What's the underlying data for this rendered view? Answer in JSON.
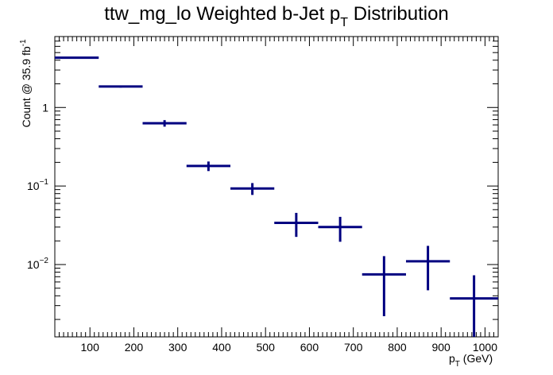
{
  "chart_data": {
    "type": "scatter",
    "style": "histogram-errorbars",
    "title_main": "ttw_mg_lo Weighted b-Jet p",
    "title_sub": "T",
    "title_tail": " Distribution",
    "ylabel_main": "Count @ 35.9 fb",
    "ylabel_sup": "-1",
    "xlabel_main": "p",
    "xlabel_sub": "T",
    "xlabel_tail": " (GeV)",
    "xlim": [
      20,
      1030
    ],
    "ylim": [
      0.0012,
      8.0
    ],
    "yscale": "log",
    "grid": false,
    "legend": "none",
    "color": "#000080",
    "x_ticks": [
      100,
      200,
      300,
      400,
      500,
      600,
      700,
      800,
      900,
      1000
    ],
    "x_tick_labels": [
      "100",
      "200",
      "300",
      "400",
      "500",
      "600",
      "700",
      "800",
      "900",
      "1000"
    ],
    "y_tick_labels": [
      {
        "value": 1,
        "base": "1",
        "exp": ""
      },
      {
        "value": 0.1,
        "base": "10",
        "exp": "−1"
      },
      {
        "value": 0.01,
        "base": "10",
        "exp": "−2"
      }
    ],
    "bins": [
      {
        "x_low": 20,
        "x_high": 120,
        "value": 4.3,
        "err": 0.06
      },
      {
        "x_low": 120,
        "x_high": 220,
        "value": 1.85,
        "err": 0.06
      },
      {
        "x_low": 220,
        "x_high": 320,
        "value": 0.63,
        "err": 0.06
      },
      {
        "x_low": 320,
        "x_high": 420,
        "value": 0.18,
        "err": 0.025
      },
      {
        "x_low": 420,
        "x_high": 520,
        "value": 0.093,
        "err": 0.016
      },
      {
        "x_low": 520,
        "x_high": 620,
        "value": 0.034,
        "err": 0.0115
      },
      {
        "x_low": 620,
        "x_high": 720,
        "value": 0.03,
        "err": 0.0105
      },
      {
        "x_low": 720,
        "x_high": 820,
        "value": 0.0075,
        "err": 0.0053
      },
      {
        "x_low": 820,
        "x_high": 920,
        "value": 0.011,
        "err": 0.0063
      },
      {
        "x_low": 920,
        "x_high": 1030,
        "value": 0.0037,
        "err": 0.0036
      }
    ]
  }
}
